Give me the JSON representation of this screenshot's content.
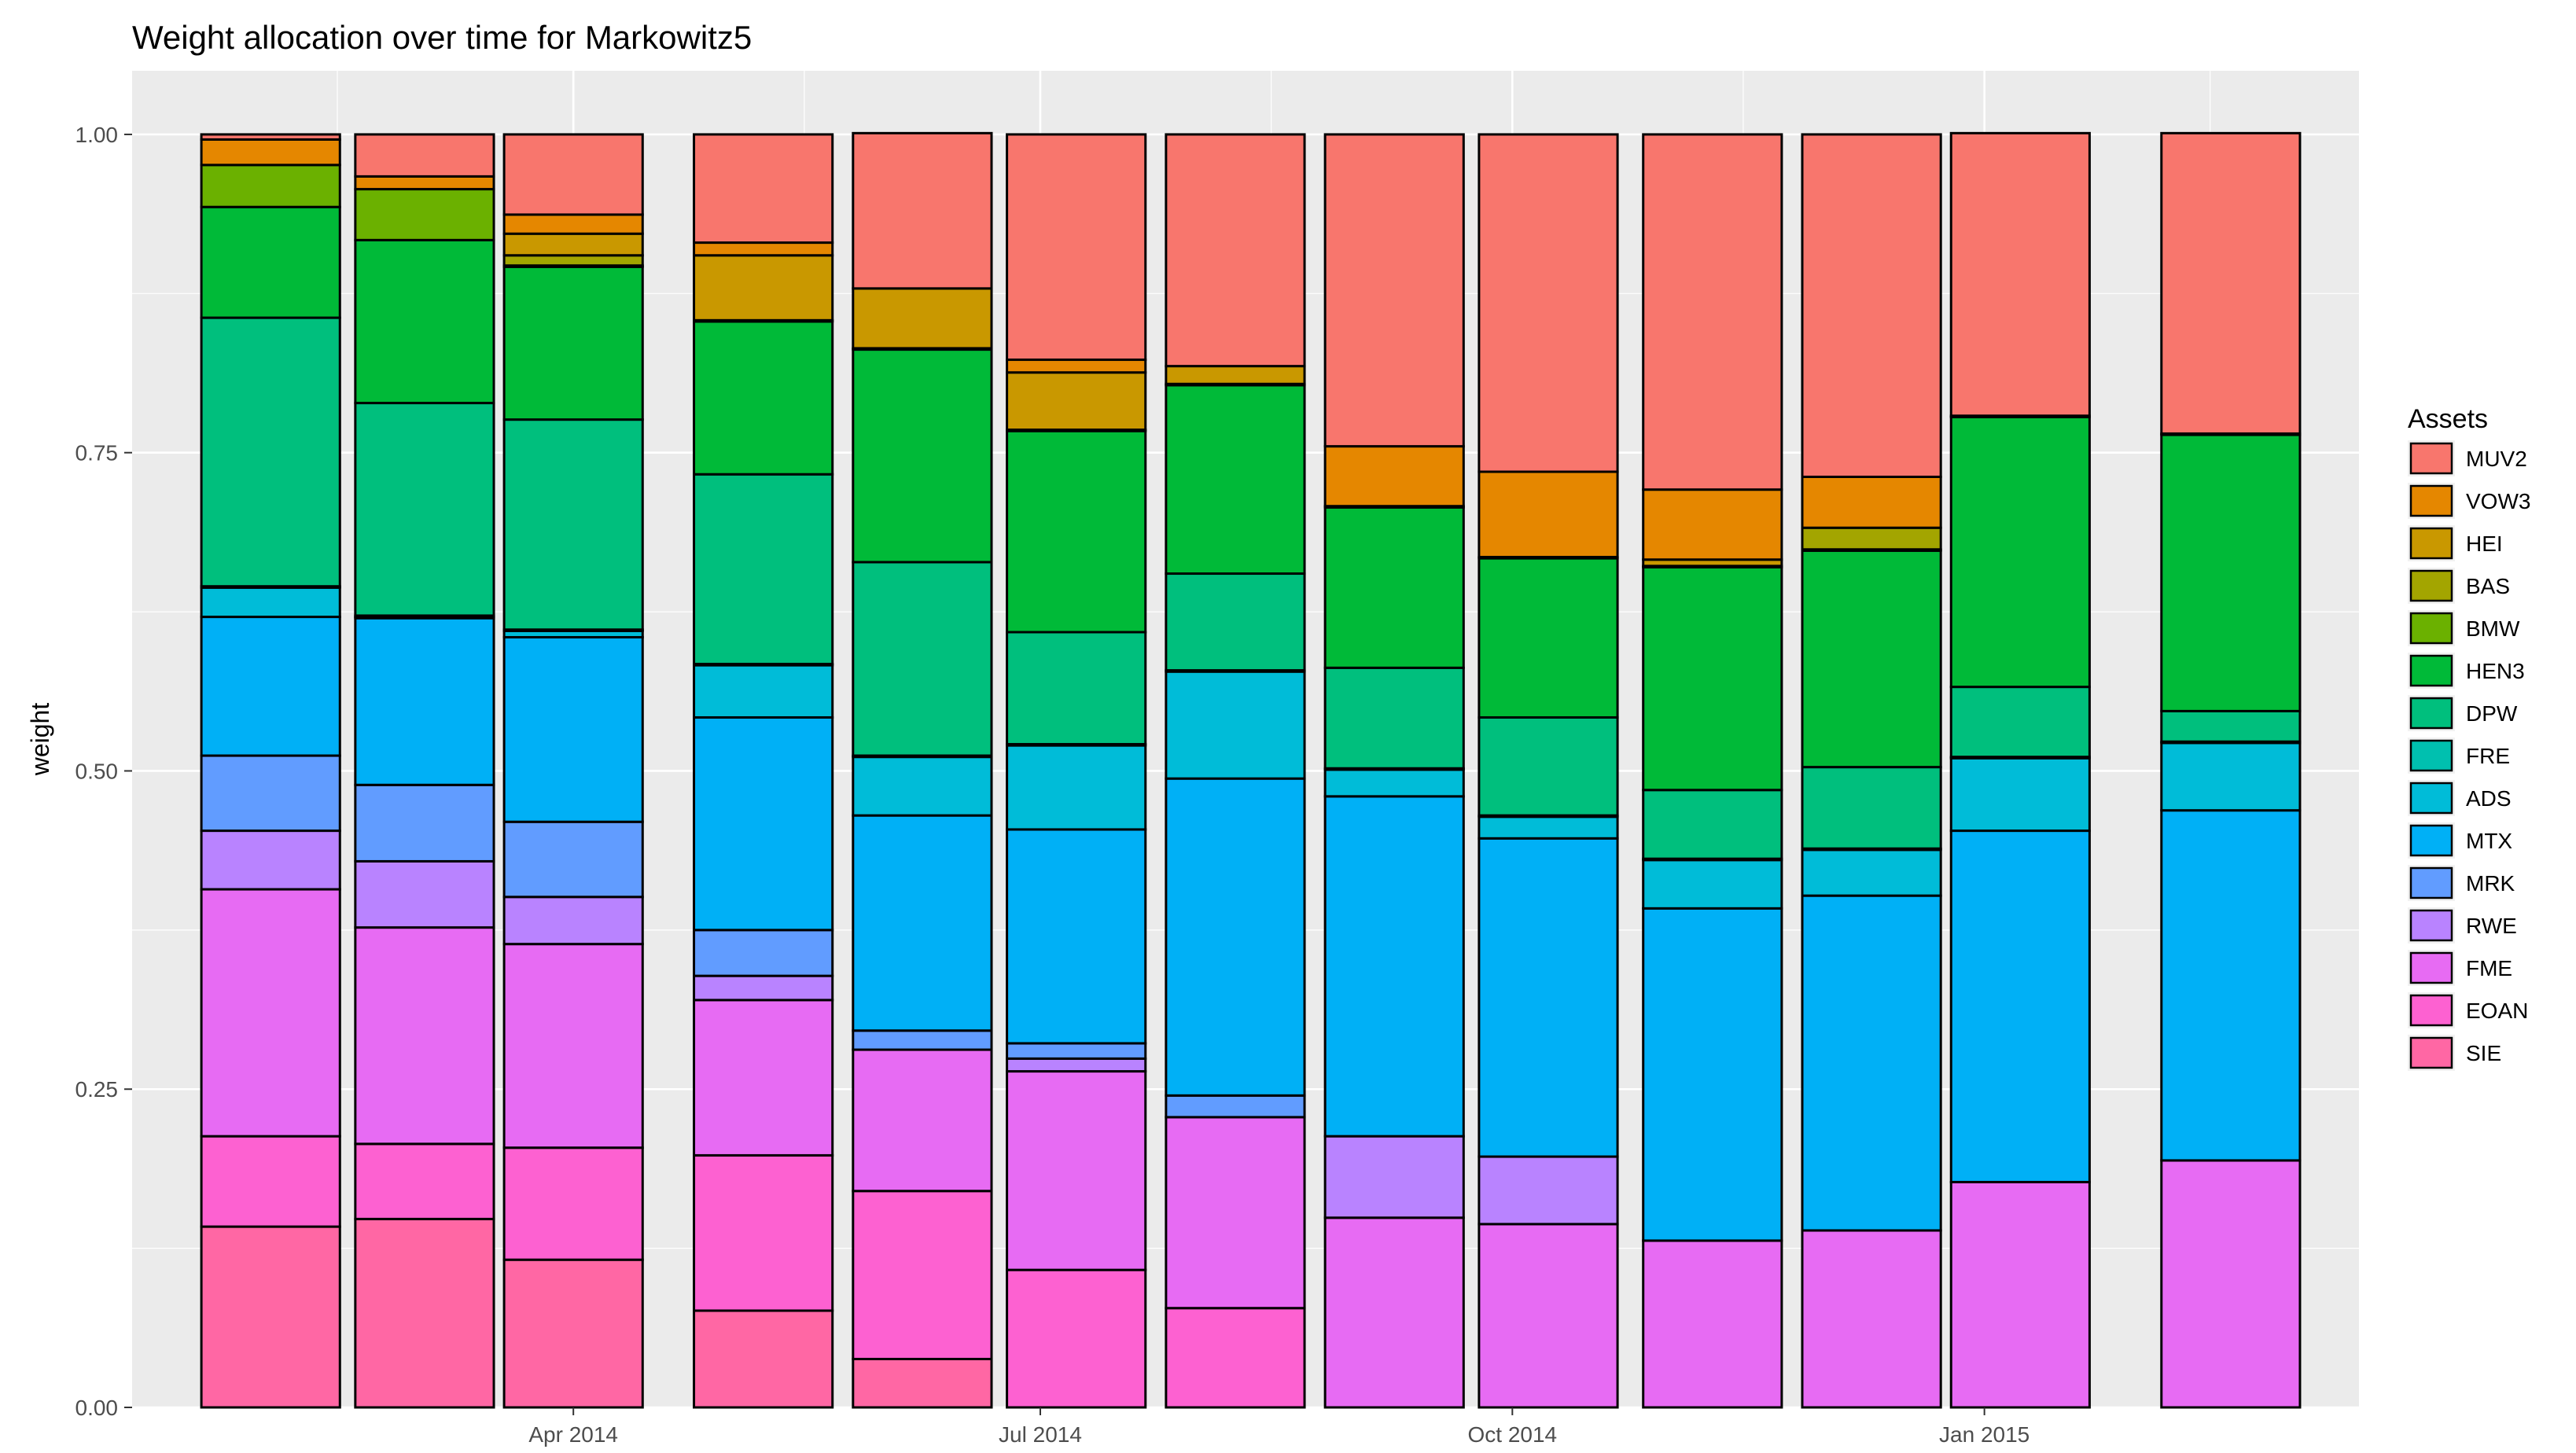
{
  "chart_data": {
    "type": "bar",
    "stacked": true,
    "title": "Weight allocation over time for Markowitz5",
    "xlabel": "",
    "ylabel": "weight",
    "ylim": [
      0,
      1.05
    ],
    "yticks": [
      "0.00",
      "0.25",
      "0.50",
      "0.75",
      "1.00"
    ],
    "ytick_values": [
      0,
      0.25,
      0.5,
      0.75,
      1.0
    ],
    "xtick_labels": [
      "Apr 2014",
      "Jul 2014",
      "Oct 2014",
      "Jan 2015"
    ],
    "xtick_dates": [
      "2014-04-01",
      "2014-07-01",
      "2014-10-01",
      "2015-01-01"
    ],
    "xlim_dates": [
      "2014-01-05",
      "2015-03-15"
    ],
    "minor_x_dates": [
      "2014-02-14",
      "2014-05-16",
      "2014-08-15",
      "2014-11-15",
      "2015-02-14"
    ],
    "bar_dates": [
      "2014-02-01",
      "2014-03-03",
      "2014-04-01",
      "2014-05-08",
      "2014-06-08",
      "2014-07-08",
      "2014-08-08",
      "2014-09-08",
      "2014-10-08",
      "2014-11-09",
      "2014-12-10",
      "2015-01-08",
      "2015-02-18"
    ],
    "bar_width_days": 27,
    "legend": {
      "title": "Assets",
      "position": "right",
      "items": [
        "MUV2",
        "VOW3",
        "HEI",
        "BAS",
        "BMW",
        "HEN3",
        "DPW",
        "FRE",
        "ADS",
        "MTX",
        "MRK",
        "RWE",
        "FME",
        "EOAN",
        "SIE"
      ]
    },
    "stack_order_bottom_to_top": [
      "SIE",
      "EOAN",
      "FME",
      "RWE",
      "MRK",
      "MTX",
      "ADS",
      "FRE",
      "DPW",
      "HEN3",
      "BMW",
      "BAS",
      "HEI",
      "VOW3",
      "MUV2"
    ],
    "colors": {
      "MUV2": "#F8766D",
      "VOW3": "#E58700",
      "HEI": "#C99800",
      "BAS": "#A3A500",
      "BMW": "#6BB100",
      "HEN3": "#00BA38",
      "DPW": "#00BF7D",
      "FRE": "#00C0AF",
      "ADS": "#00BCD8",
      "MTX": "#00B0F6",
      "MRK": "#619CFF",
      "RWE": "#B983FF",
      "FME": "#E76BF3",
      "EOAN": "#FD61D1",
      "SIE": "#FF67A4"
    },
    "series": [
      {
        "name": "SIE",
        "values": [
          0.142,
          0.148,
          0.116,
          0.076,
          0.038,
          0.0,
          0.0,
          0.0,
          0.0,
          0.0,
          0.0,
          0.0,
          0.0
        ]
      },
      {
        "name": "EOAN",
        "values": [
          0.071,
          0.059,
          0.088,
          0.122,
          0.132,
          0.108,
          0.078,
          0.0,
          0.0,
          0.0,
          0.0,
          0.0,
          0.0
        ]
      },
      {
        "name": "FME",
        "values": [
          0.194,
          0.17,
          0.16,
          0.122,
          0.111,
          0.156,
          0.15,
          0.149,
          0.144,
          0.131,
          0.139,
          0.177,
          0.194
        ]
      },
      {
        "name": "RWE",
        "values": [
          0.046,
          0.052,
          0.037,
          0.019,
          0.0,
          0.01,
          0.0,
          0.064,
          0.053,
          0.0,
          0.0,
          0.0,
          0.0
        ]
      },
      {
        "name": "MRK",
        "values": [
          0.059,
          0.06,
          0.059,
          0.036,
          0.015,
          0.012,
          0.017,
          0.0,
          0.0,
          0.0,
          0.0,
          0.0,
          0.0
        ]
      },
      {
        "name": "MTX",
        "values": [
          0.109,
          0.131,
          0.145,
          0.167,
          0.169,
          0.168,
          0.249,
          0.267,
          0.25,
          0.261,
          0.263,
          0.276,
          0.275
        ]
      },
      {
        "name": "ADS",
        "values": [
          0.023,
          0.001,
          0.005,
          0.041,
          0.046,
          0.066,
          0.084,
          0.021,
          0.017,
          0.038,
          0.036,
          0.057,
          0.053
        ]
      },
      {
        "name": "FRE",
        "values": [
          0.001,
          0.001,
          0.001,
          0.001,
          0.001,
          0.001,
          0.001,
          0.001,
          0.001,
          0.001,
          0.001,
          0.001,
          0.001
        ]
      },
      {
        "name": "DPW",
        "values": [
          0.211,
          0.167,
          0.165,
          0.149,
          0.152,
          0.088,
          0.076,
          0.079,
          0.077,
          0.054,
          0.064,
          0.055,
          0.024
        ]
      },
      {
        "name": "HEN3",
        "values": [
          0.087,
          0.128,
          0.12,
          0.12,
          0.167,
          0.158,
          0.148,
          0.126,
          0.125,
          0.175,
          0.17,
          0.212,
          0.217
        ]
      },
      {
        "name": "BMW",
        "values": [
          0.033,
          0.04,
          0.001,
          0.001,
          0.001,
          0.001,
          0.001,
          0.001,
          0.001,
          0.001,
          0.001,
          0.001,
          0.001
        ]
      },
      {
        "name": "BAS",
        "values": [
          0.0,
          0.0,
          0.008,
          0.0,
          0.0,
          0.0,
          0.0,
          0.0,
          0.0,
          0.0,
          0.017,
          0.0,
          0.0
        ]
      },
      {
        "name": "HEI",
        "values": [
          0.0,
          0.0,
          0.017,
          0.051,
          0.047,
          0.045,
          0.014,
          0.0,
          0.0,
          0.005,
          0.0,
          0.0,
          0.0
        ]
      },
      {
        "name": "VOW3",
        "values": [
          0.02,
          0.01,
          0.015,
          0.01,
          0.0,
          0.01,
          0.0,
          0.047,
          0.067,
          0.055,
          0.04,
          0.0,
          0.0
        ]
      },
      {
        "name": "MUV2",
        "values": [
          0.004,
          0.033,
          0.063,
          0.085,
          0.122,
          0.177,
          0.182,
          0.245,
          0.265,
          0.279,
          0.269,
          0.222,
          0.236
        ]
      }
    ]
  }
}
